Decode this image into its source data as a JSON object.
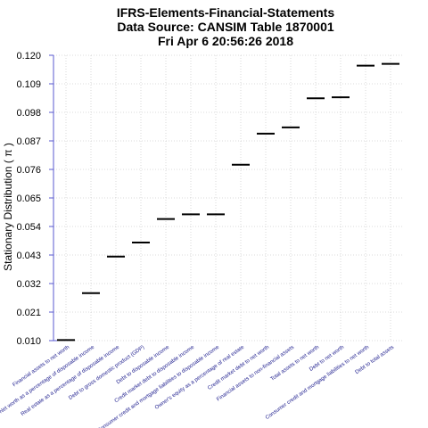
{
  "chart_data": {
    "type": "scatter",
    "marker": "horizontal-dash",
    "title_lines": [
      "IFRS-Elements-Financial-Statements",
      "Data Source: CANSIM Table 1870001",
      "Fri Apr  6 20:56:26 2018"
    ],
    "ylabel": "Stationary Distribution ( π )",
    "xlabel": "",
    "ylim": [
      0.01,
      0.12
    ],
    "yticks": [
      "0.010",
      "0.021",
      "0.032",
      "0.043",
      "0.054",
      "0.065",
      "0.076",
      "0.087",
      "0.098",
      "0.109",
      "0.120"
    ],
    "grid": true,
    "categories": [
      "Financial assets to net worth",
      "Net worth as a percentage of disposable income",
      "Real estate as a percentage of disposable income",
      "Debt to gross domestic product (GDP)",
      "Debt to disposable income",
      "Credit market debt to disposable income",
      "Consumer credit and mortgage liabilities to disposable income",
      "Owner's equity as a percentage of real estate",
      "Credit market debt to net worth",
      "Financial assets to non-financial assets",
      "Total assets to net worth",
      "Debt to net worth",
      "Consumer credit and mortgage liabilities to net worth",
      "Debt to total assets"
    ],
    "values": [
      0.0102,
      0.0283,
      0.0424,
      0.0478,
      0.0569,
      0.0587,
      0.0587,
      0.0778,
      0.0898,
      0.0922,
      0.1034,
      0.1038,
      0.116,
      0.1167
    ]
  }
}
